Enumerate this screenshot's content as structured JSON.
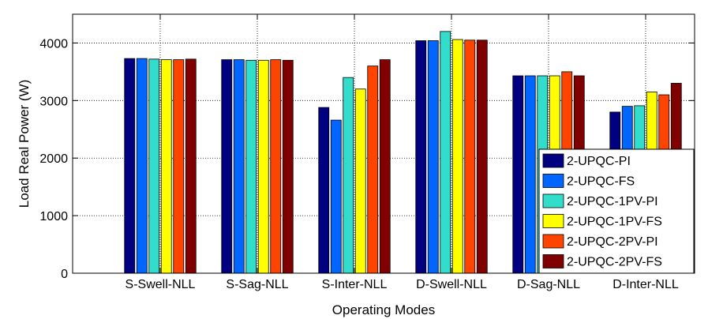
{
  "chart_data": {
    "type": "bar",
    "title": "",
    "xlabel": "Operating Modes",
    "ylabel": "Load Real Power (W)",
    "categories": [
      "S-Swell-NLL",
      "S-Sag-NLL",
      "S-Inter-NLL",
      "D-Swell-NLL",
      "D-Sag-NLL",
      "D-Inter-NLL"
    ],
    "ylim": [
      0,
      4500
    ],
    "yticks": [
      0,
      1000,
      2000,
      3000,
      4000
    ],
    "grid": true,
    "legend_position": "bottom-right",
    "series": [
      {
        "name": "2-UPQC-PI",
        "color": "#000080",
        "values": [
          3730,
          3710,
          2880,
          4040,
          3430,
          2800
        ]
      },
      {
        "name": "2-UPQC-FS",
        "color": "#0066ff",
        "values": [
          3730,
          3710,
          2660,
          4040,
          3430,
          2900
        ]
      },
      {
        "name": "2-UPQC-1PV-PI",
        "color": "#33ddcc",
        "values": [
          3720,
          3700,
          3400,
          4200,
          3430,
          2910
        ]
      },
      {
        "name": "2-UPQC-1PV-FS",
        "color": "#ffff00",
        "values": [
          3710,
          3700,
          3200,
          4060,
          3430,
          3150
        ]
      },
      {
        "name": "2-UPQC-2PV-PI",
        "color": "#ff4400",
        "values": [
          3710,
          3710,
          3600,
          4050,
          3500,
          3100
        ]
      },
      {
        "name": "2-UPQC-2PV-FS",
        "color": "#800000",
        "values": [
          3720,
          3700,
          3710,
          4050,
          3430,
          3300
        ]
      }
    ]
  }
}
